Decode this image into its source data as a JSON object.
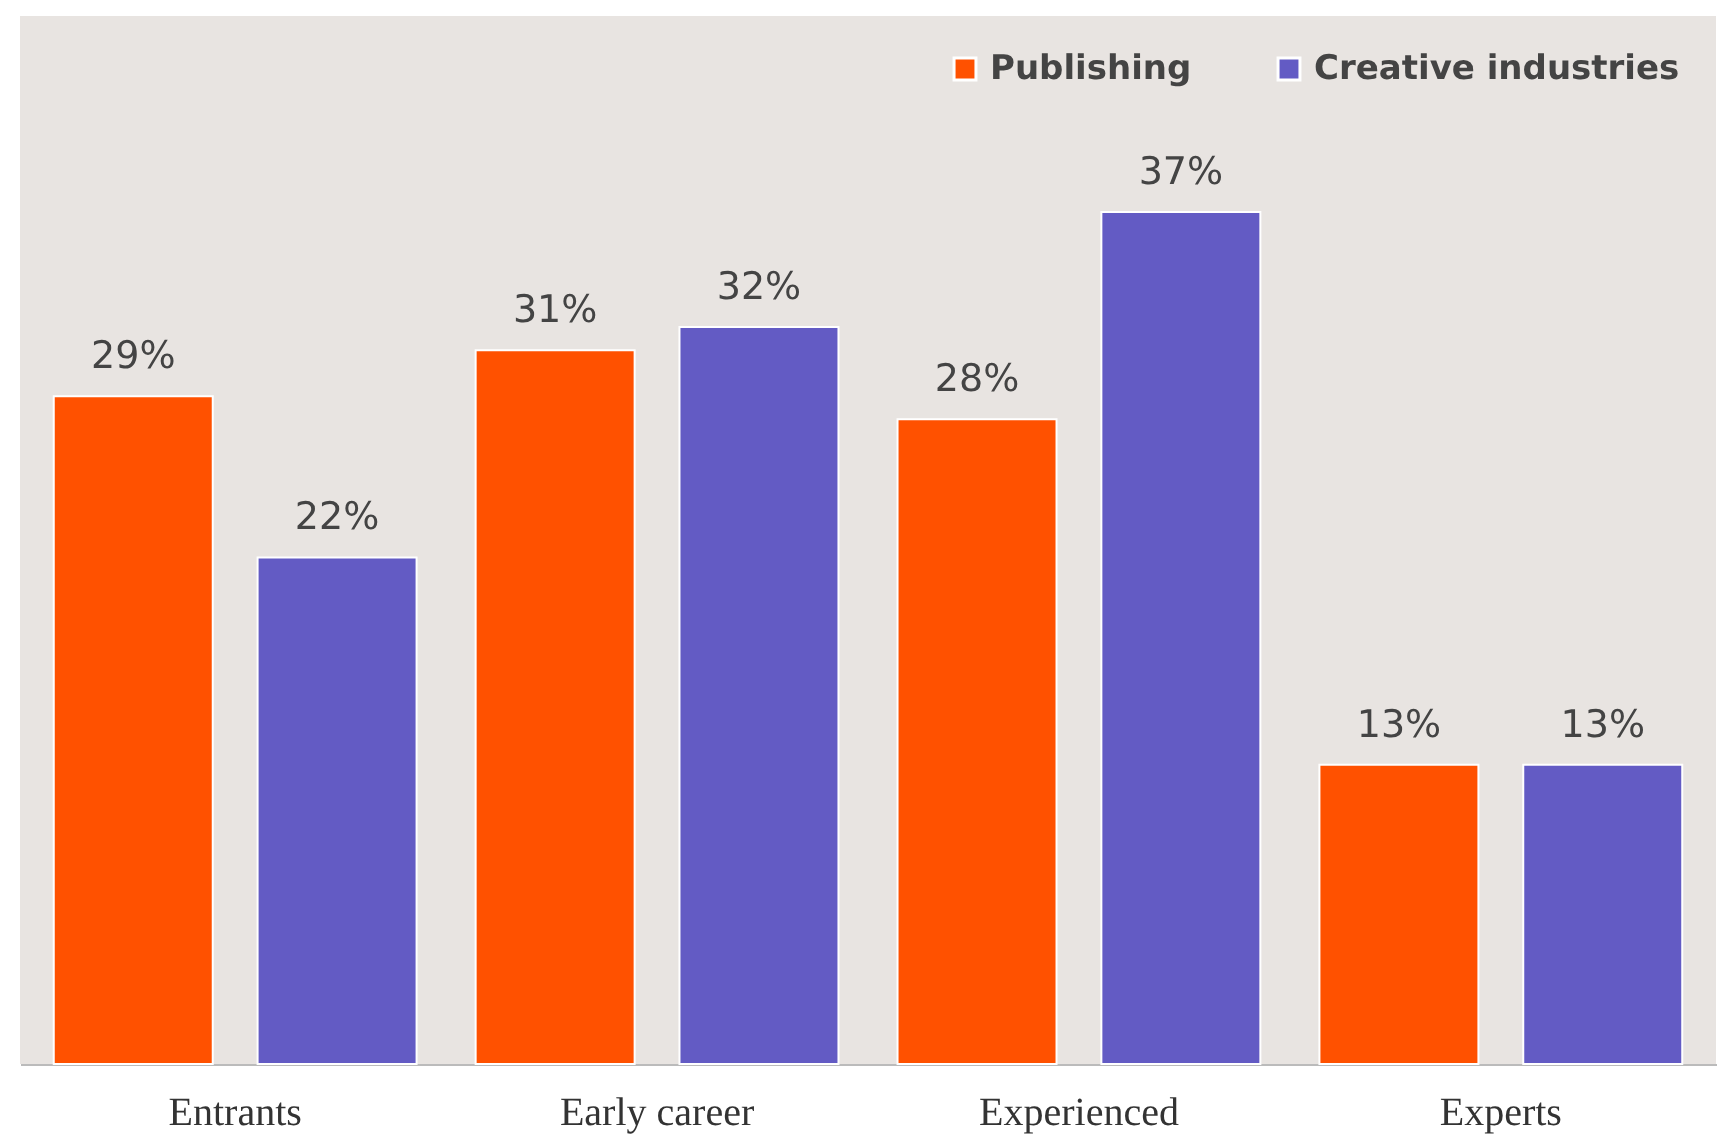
{
  "chart_data": {
    "type": "bar",
    "categories": [
      "Entrants",
      "Early career",
      "Experienced",
      "Experts"
    ],
    "series": [
      {
        "name": "Publishing",
        "color": "#ff5100",
        "values": [
          29,
          31,
          28,
          13
        ],
        "value_labels": [
          "29%",
          "31%",
          "28%",
          "13%"
        ]
      },
      {
        "name": "Creative industries",
        "color": "#635bc4",
        "values": [
          22,
          32,
          37,
          13
        ],
        "value_labels": [
          "22%",
          "32%",
          "37%",
          "13%"
        ]
      }
    ],
    "tick_labels": "x",
    "legend": "top right"
  }
}
